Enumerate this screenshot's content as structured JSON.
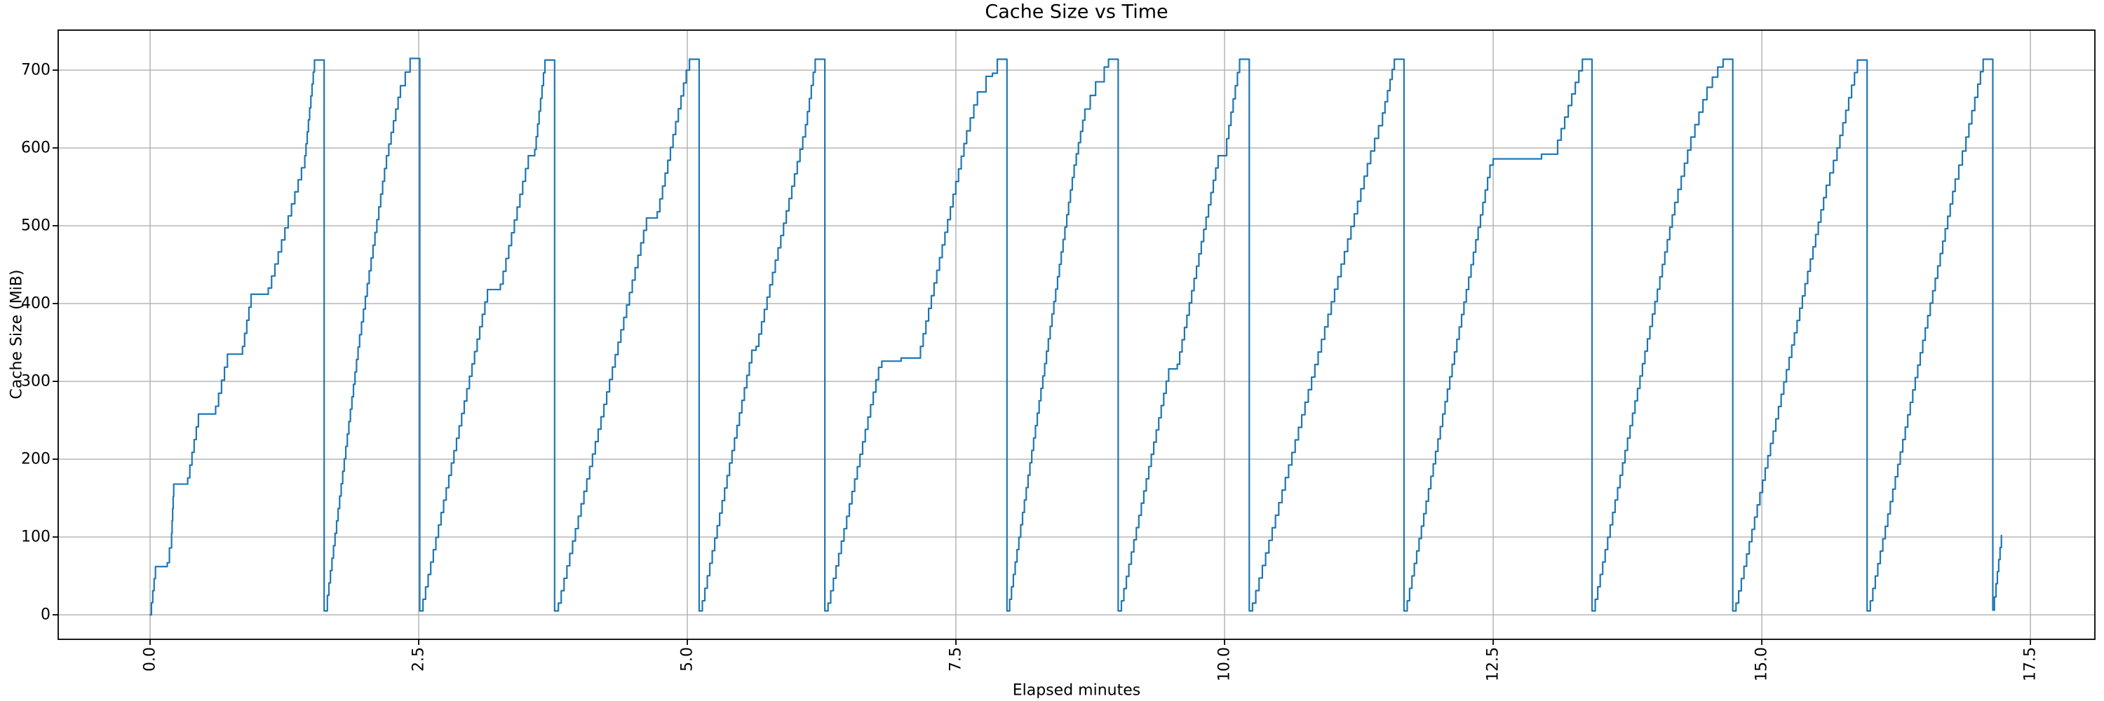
{
  "chart_data": {
    "type": "line",
    "title": "Cache Size vs Time",
    "xlabel": "Elapsed minutes",
    "ylabel": "Cache Size (MiB)",
    "legend": null,
    "grid": true,
    "background": "#ffffff",
    "series_color": "#1f77b4",
    "grid_color": "#b0b0b0",
    "axis_color": "#000000",
    "xlim": [
      -0.855,
      18.1
    ],
    "ylim": [
      -31.5,
      751.4
    ],
    "x_ticks": [
      0.0,
      2.5,
      5.0,
      7.5,
      10.0,
      12.5,
      15.0,
      17.5
    ],
    "x_tick_labels": [
      "0.0",
      "2.5",
      "5.0",
      "7.5",
      "10.0",
      "12.5",
      "15.0",
      "17.5"
    ],
    "x_tick_rotation_deg": 90,
    "y_ticks": [
      0,
      100,
      200,
      300,
      400,
      500,
      600,
      700
    ],
    "y_tick_labels": [
      "0",
      "100",
      "200",
      "300",
      "400",
      "500",
      "600",
      "700"
    ],
    "peak_mib": 715,
    "num_sawtooth_cycles": 13,
    "step_quantum_mib": 16,
    "series": [
      {
        "name": "cache size",
        "style": "staircase",
        "points": [
          [
            0.0,
            0
          ],
          [
            0.05,
            62
          ],
          [
            0.16,
            67
          ],
          [
            0.2,
            105
          ],
          [
            0.22,
            168
          ],
          [
            0.35,
            176
          ],
          [
            0.45,
            258
          ],
          [
            0.61,
            268
          ],
          [
            0.72,
            335
          ],
          [
            0.86,
            345
          ],
          [
            0.94,
            412
          ],
          [
            1.1,
            420
          ],
          [
            1.44,
            590
          ],
          [
            1.53,
            713
          ],
          [
            1.62,
            5
          ],
          [
            1.65,
            25
          ],
          [
            1.95,
            360
          ],
          [
            2.2,
            590
          ],
          [
            2.33,
            680
          ],
          [
            2.42,
            715
          ],
          [
            2.51,
            5
          ],
          [
            2.54,
            20
          ],
          [
            3.14,
            418
          ],
          [
            3.26,
            425
          ],
          [
            3.52,
            590
          ],
          [
            3.58,
            598
          ],
          [
            3.675,
            713
          ],
          [
            3.765,
            5
          ],
          [
            3.8,
            15
          ],
          [
            4.62,
            510
          ],
          [
            4.72,
            518
          ],
          [
            4.99,
            700
          ],
          [
            5.02,
            714
          ],
          [
            5.11,
            5
          ],
          [
            5.14,
            18
          ],
          [
            5.6,
            340
          ],
          [
            5.64,
            345
          ],
          [
            6.1,
            630
          ],
          [
            6.19,
            714
          ],
          [
            6.28,
            5
          ],
          [
            6.31,
            15
          ],
          [
            6.78,
            318
          ],
          [
            6.81,
            326
          ],
          [
            6.99,
            330
          ],
          [
            7.17,
            345
          ],
          [
            7.6,
            622
          ],
          [
            7.7,
            672
          ],
          [
            7.78,
            692
          ],
          [
            7.84,
            696
          ],
          [
            7.885,
            714
          ],
          [
            7.975,
            5
          ],
          [
            8.0,
            20
          ],
          [
            8.6,
            578
          ],
          [
            8.7,
            650
          ],
          [
            8.8,
            685
          ],
          [
            8.88,
            704
          ],
          [
            8.92,
            714
          ],
          [
            9.01,
            5
          ],
          [
            9.04,
            18
          ],
          [
            9.48,
            316
          ],
          [
            9.56,
            322
          ],
          [
            9.94,
            590
          ],
          [
            10.02,
            612
          ],
          [
            10.14,
            714
          ],
          [
            10.23,
            5
          ],
          [
            10.26,
            15
          ],
          [
            11.36,
            596
          ],
          [
            11.47,
            645
          ],
          [
            11.54,
            688
          ],
          [
            11.58,
            714
          ],
          [
            11.67,
            5
          ],
          [
            11.7,
            18
          ],
          [
            12.47,
            578
          ],
          [
            12.5,
            586
          ],
          [
            12.95,
            592
          ],
          [
            13.1,
            610
          ],
          [
            13.33,
            714
          ],
          [
            13.42,
            5
          ],
          [
            13.45,
            20
          ],
          [
            14.19,
            530
          ],
          [
            14.34,
            614
          ],
          [
            14.49,
            678
          ],
          [
            14.59,
            704
          ],
          [
            14.64,
            714
          ],
          [
            14.73,
            5
          ],
          [
            14.76,
            15
          ],
          [
            15.6,
            552
          ],
          [
            15.7,
            600
          ],
          [
            15.89,
            713
          ],
          [
            15.98,
            5
          ],
          [
            16.01,
            18
          ],
          [
            16.8,
            560
          ],
          [
            16.9,
            614
          ],
          [
            17.01,
            682
          ],
          [
            17.06,
            714
          ],
          [
            17.15,
            6
          ],
          [
            17.18,
            40
          ],
          [
            17.23,
            102
          ]
        ]
      }
    ]
  }
}
